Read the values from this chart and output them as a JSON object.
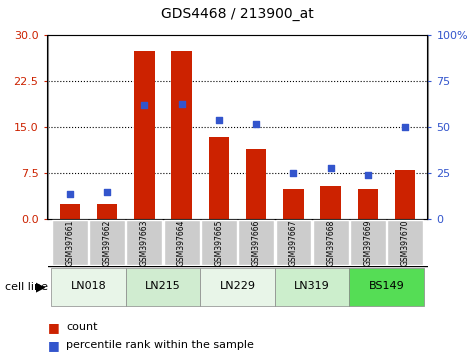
{
  "title": "GDS4468 / 213900_at",
  "samples": [
    "GSM397661",
    "GSM397662",
    "GSM397663",
    "GSM397664",
    "GSM397665",
    "GSM397666",
    "GSM397667",
    "GSM397668",
    "GSM397669",
    "GSM397670"
  ],
  "count_values": [
    2.5,
    2.5,
    27.5,
    27.5,
    13.5,
    11.5,
    5.0,
    5.5,
    5.0,
    8.0
  ],
  "percentile_values": [
    14,
    15,
    62,
    63,
    54,
    52,
    25,
    28,
    24,
    50
  ],
  "cell_lines": [
    {
      "name": "LN018",
      "start": 0,
      "end": 1,
      "color": "#e8f5e8"
    },
    {
      "name": "LN215",
      "start": 2,
      "end": 3,
      "color": "#d0ecd0"
    },
    {
      "name": "LN229",
      "start": 4,
      "end": 5,
      "color": "#e8f5e8"
    },
    {
      "name": "LN319",
      "start": 6,
      "end": 7,
      "color": "#cceecc"
    },
    {
      "name": "BS149",
      "start": 8,
      "end": 9,
      "color": "#55dd55"
    }
  ],
  "ylim_left": [
    0,
    30
  ],
  "ylim_right": [
    0,
    100
  ],
  "yticks_left": [
    0,
    7.5,
    15,
    22.5,
    30
  ],
  "yticks_right": [
    0,
    25,
    50,
    75,
    100
  ],
  "bar_color": "#cc2200",
  "dot_color": "#3355cc",
  "bar_width": 0.55,
  "xtick_bg_color": "#cccccc",
  "legend_count_label": "count",
  "legend_percentile_label": "percentile rank within the sample",
  "cell_line_label": "cell line"
}
